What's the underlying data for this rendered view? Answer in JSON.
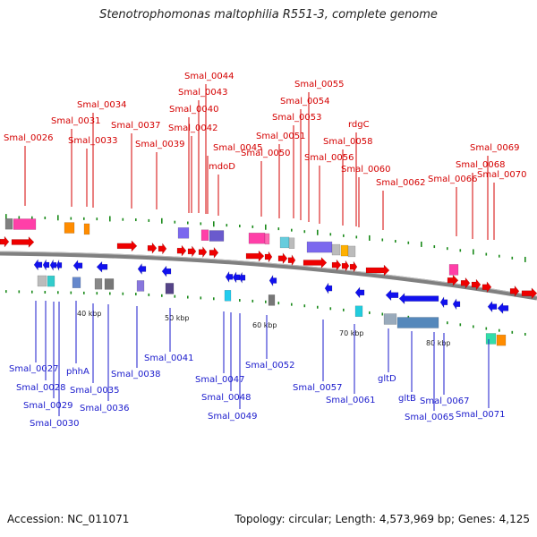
{
  "title": "Stenotrophomonas maltophilia R551-3, complete genome",
  "footer": {
    "accession": "Accession: NC_011071",
    "topology": "Topology: circular; Length: 4,573,969 bp; Genes: 4,125"
  },
  "scale_labels": [
    "40 kbp",
    "50 kbp",
    "60 kbp",
    "70 kbp",
    "80 kbp"
  ],
  "top_labels": [
    "Smal_0026",
    "Smal_0031",
    "Smal_0033",
    "Smal_0034",
    "Smal_0037",
    "Smal_0039",
    "Smal_0040",
    "Smal_0042",
    "Smal_0043",
    "Smal_0044",
    "mdoD",
    "Smal_0045",
    "Smal_0050",
    "Smal_0051",
    "Smal_0053",
    "Smal_0054",
    "Smal_0055",
    "Smal_0056",
    "Smal_0058",
    "rdgC",
    "Smal_0060",
    "Smal_0062",
    "Smal_0066",
    "Smal_0068",
    "Smal_0069",
    "Smal_0070"
  ],
  "bottom_labels": [
    "Smal_0027",
    "phhA",
    "Smal_0028",
    "Smal_0029",
    "Smal_0030",
    "Smal_0035",
    "Smal_0036",
    "Smal_0038",
    "Smal_0041",
    "Smal_0047",
    "Smal_0048",
    "Smal_0049",
    "Smal_0052",
    "Smal_0057",
    "Smal_0061",
    "gltD",
    "gltB",
    "Smal_0065",
    "Smal_0067",
    "Smal_0071"
  ],
  "colors": {
    "label_top": "#d40000",
    "label_bottom": "#1a1acc",
    "forward_gene": "#ee0000",
    "reverse_gene": "#1111ee",
    "backbone": "#808080",
    "tick": "#1a8a1a"
  }
}
